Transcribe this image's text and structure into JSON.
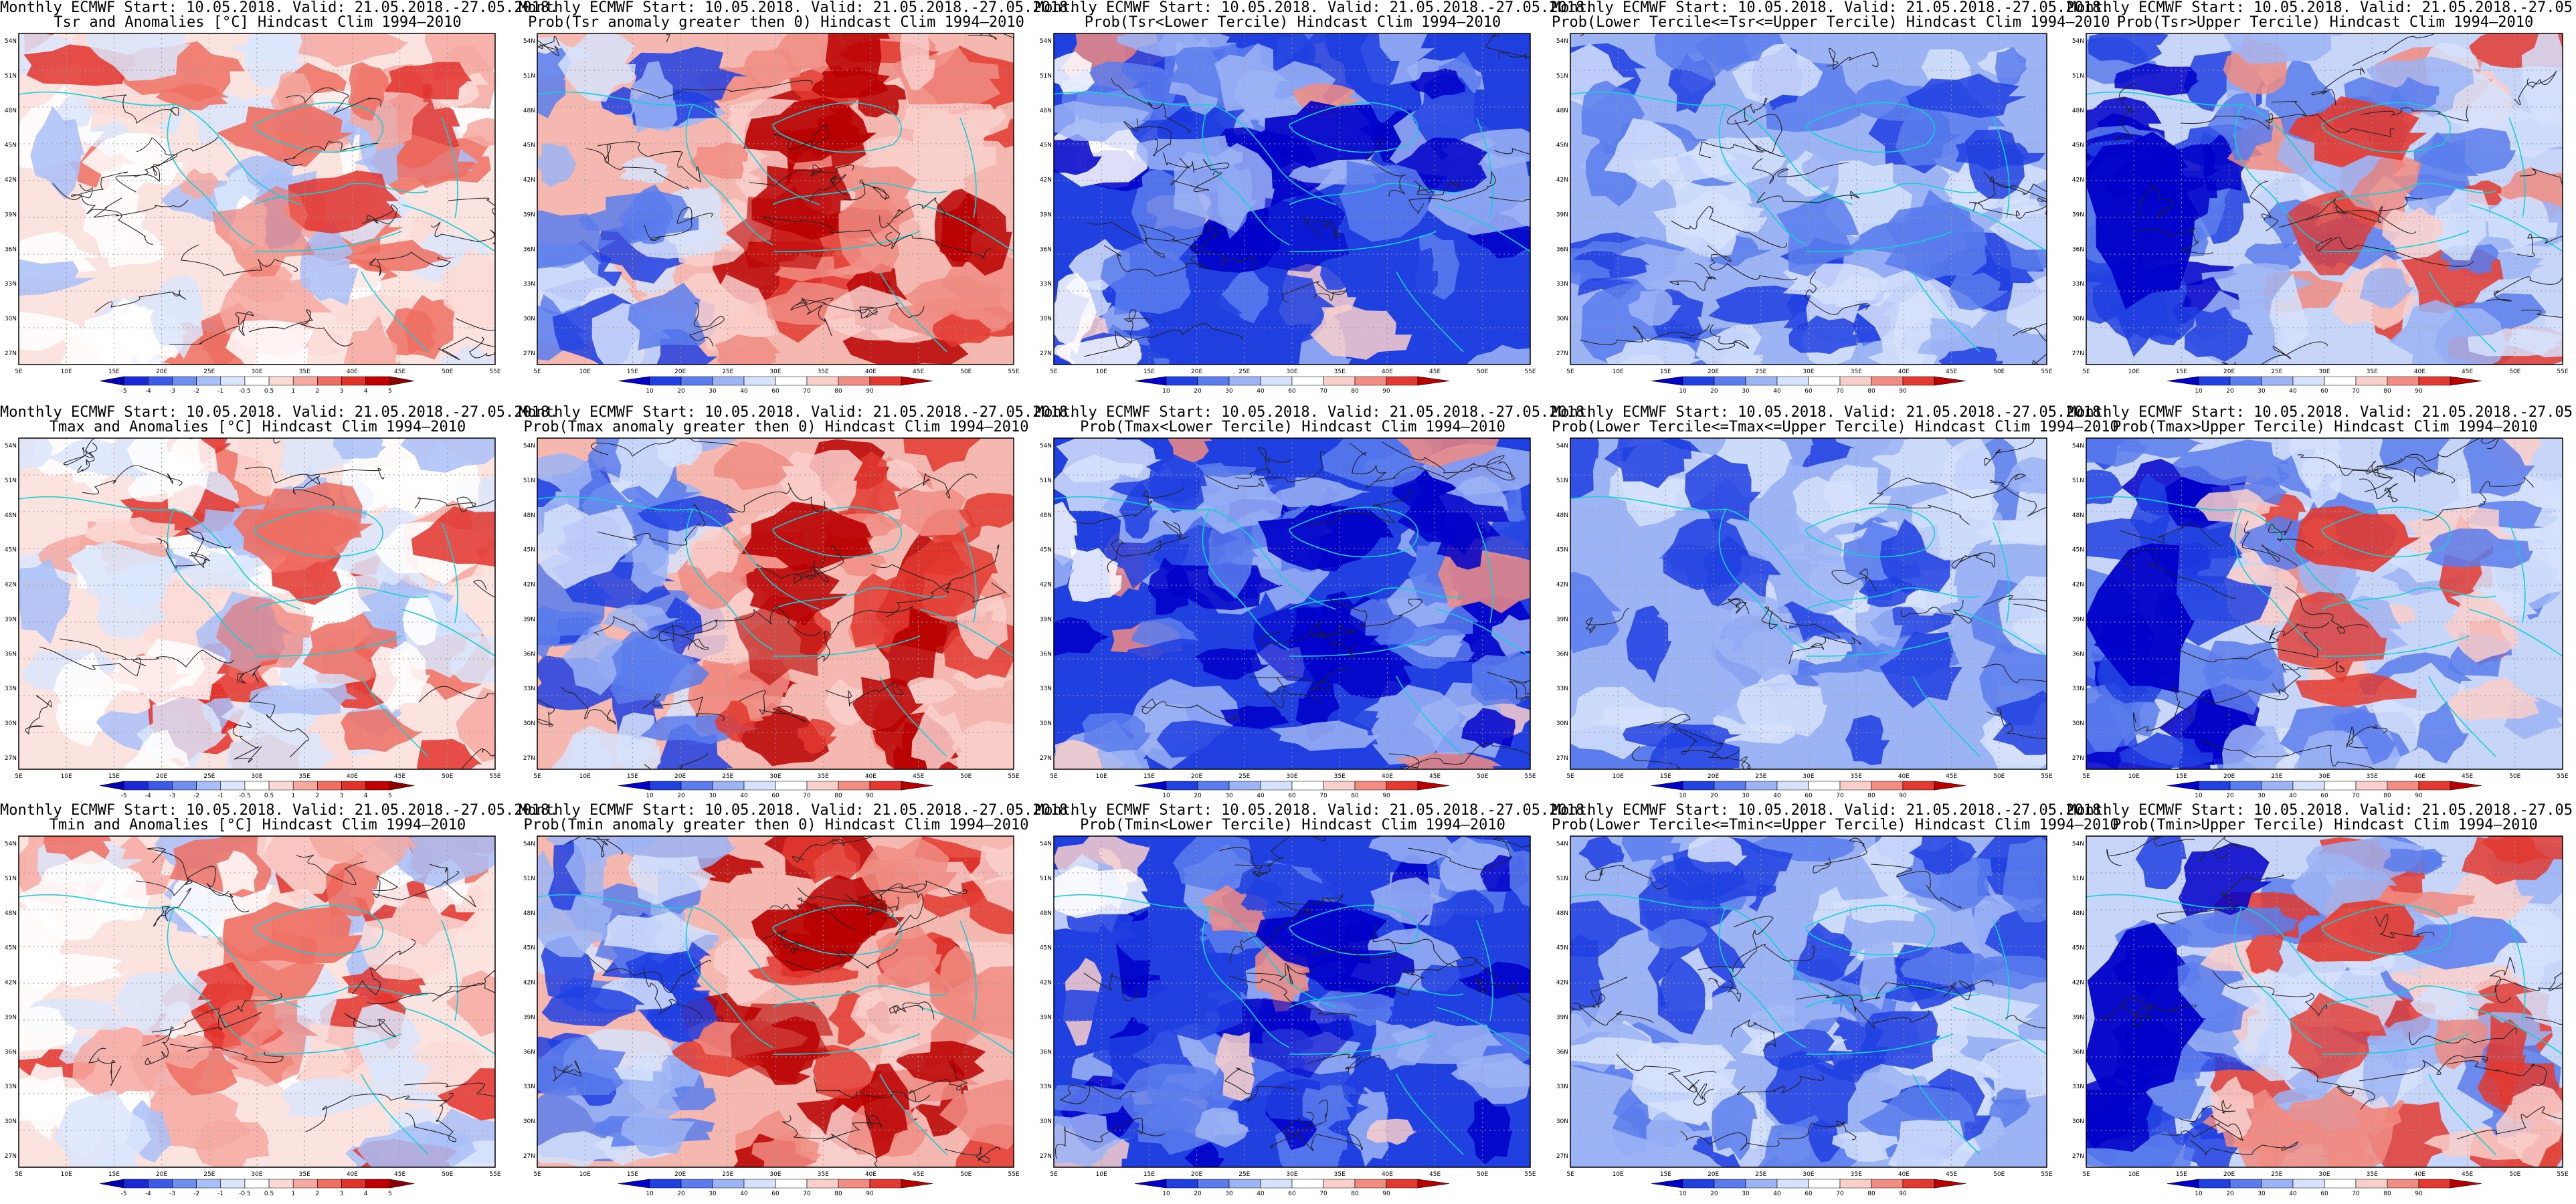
{
  "header_line": "Monthly ECMWF Start: 10.05.2018. Valid: 21.05.2018.-27.05.2018.",
  "lat_labels": [
    "54N",
    "51N",
    "48N",
    "45N",
    "42N",
    "39N",
    "36N",
    "33N",
    "30N",
    "27N"
  ],
  "lon_labels": [
    "5E",
    "10E",
    "15E",
    "20E",
    "25E",
    "30E",
    "35E",
    "40E",
    "45E",
    "50E",
    "55E"
  ],
  "anomaly_scale": {
    "labels": [
      "-5",
      "-4",
      "-3",
      "-2",
      "-1",
      "-0.5",
      "0.5",
      "1",
      "2",
      "3",
      "4",
      "5"
    ],
    "colors": [
      "#0000b0",
      "#1a28d6",
      "#3c5ae6",
      "#6e8ef0",
      "#a9bff7",
      "#dbe6fb",
      "#ffffff",
      "#fbdad6",
      "#f5a9a1",
      "#ee6e62",
      "#e2332b",
      "#c00000",
      "#8b0000"
    ]
  },
  "prob_scale": {
    "labels": [
      "10",
      "20",
      "30",
      "40",
      "60",
      "70",
      "80",
      "90"
    ],
    "colors": [
      "#0000c8",
      "#2040e0",
      "#5a7cec",
      "#9cb4f4",
      "#d6e2fb",
      "#ffffff",
      "#f9cfcb",
      "#f08c82",
      "#e23a30",
      "#b80000"
    ]
  },
  "rows": [
    {
      "variable": "Tsr",
      "panels": [
        {
          "id": "tsr-anomaly",
          "title2": "Tsr and Anomalies [°C] Hindcast Clim 1994–2010",
          "type": "anomaly",
          "dominant": "warm-mild",
          "red_fraction": 0.55
        },
        {
          "id": "tsr-prob-positive",
          "title2": "Prob(Tsr anomaly greater then 0) Hindcast Clim 1994–2010",
          "type": "prob",
          "dominant": "red",
          "red_fraction": 0.6
        },
        {
          "id": "tsr-prob-lower",
          "title2": "Prob(Tsr<Lower Tercile) Hindcast Clim 1994–2010",
          "type": "prob",
          "dominant": "blue",
          "red_fraction": 0.08
        },
        {
          "id": "tsr-prob-middle",
          "title2": "Prob(Lower Tercile<=Tsr<=Upper Tercile) Hindcast Clim 1994–2010",
          "type": "prob",
          "dominant": "blue-light",
          "red_fraction": 0.02
        },
        {
          "id": "tsr-prob-upper",
          "title2": "Prob(Tsr>Upper Tercile) Hindcast Clim 1994–2010",
          "type": "prob",
          "dominant": "mixed",
          "red_fraction": 0.3
        }
      ]
    },
    {
      "variable": "Tmax",
      "panels": [
        {
          "id": "tmax-anomaly",
          "title2": "Tmax and Anomalies [°C] Hindcast Clim 1994–2010",
          "type": "anomaly",
          "dominant": "warm-mild",
          "red_fraction": 0.5
        },
        {
          "id": "tmax-prob-positive",
          "title2": "Prob(Tmax anomaly greater then 0) Hindcast Clim 1994–2010",
          "type": "prob",
          "dominant": "red",
          "red_fraction": 0.55
        },
        {
          "id": "tmax-prob-lower",
          "title2": "Prob(Tmax<Lower Tercile) Hindcast Clim 1994–2010",
          "type": "prob",
          "dominant": "blue",
          "red_fraction": 0.1
        },
        {
          "id": "tmax-prob-middle",
          "title2": "Prob(Lower Tercile<=Tmax<=Upper Tercile) Hindcast Clim 1994–2010",
          "type": "prob",
          "dominant": "blue-light",
          "red_fraction": 0.02
        },
        {
          "id": "tmax-prob-upper",
          "title2": "Prob(Tmax>Upper Tercile) Hindcast Clim 1994–2010",
          "type": "prob",
          "dominant": "mixed",
          "red_fraction": 0.28
        }
      ]
    },
    {
      "variable": "Tmin",
      "panels": [
        {
          "id": "tmin-anomaly",
          "title2": "Tmin and Anomalies [°C] Hindcast Clim 1994–2010",
          "type": "anomaly",
          "dominant": "warm-mild",
          "red_fraction": 0.6
        },
        {
          "id": "tmin-prob-positive",
          "title2": "Prob(Tmin anomaly greater then 0) Hindcast Clim 1994–2010",
          "type": "prob",
          "dominant": "red",
          "red_fraction": 0.7
        },
        {
          "id": "tmin-prob-lower",
          "title2": "Prob(Tmin<Lower Tercile) Hindcast Clim 1994–2010",
          "type": "prob",
          "dominant": "blue",
          "red_fraction": 0.06
        },
        {
          "id": "tmin-prob-middle",
          "title2": "Prob(Lower Tercile<=Tmin<=Upper Tercile) Hindcast Clim 1994–2010",
          "type": "prob",
          "dominant": "blue-light",
          "red_fraction": 0.02
        },
        {
          "id": "tmin-prob-upper",
          "title2": "Prob(Tmin>Upper Tercile) Hindcast Clim 1994–2010",
          "type": "prob",
          "dominant": "mixed",
          "red_fraction": 0.35
        }
      ]
    }
  ]
}
